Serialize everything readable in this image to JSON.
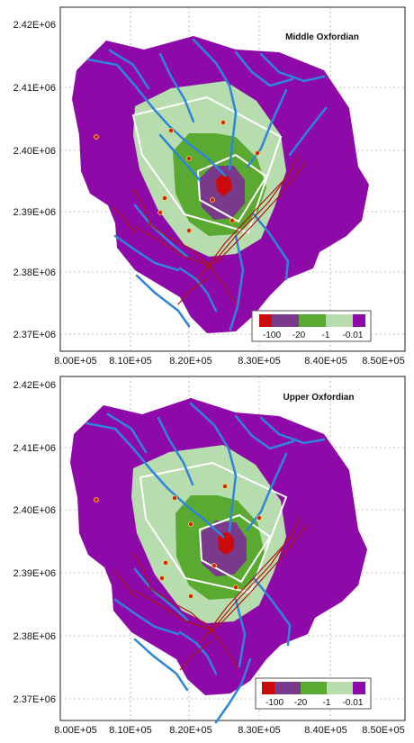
{
  "panels": [
    {
      "title": "Middle Oxfordian",
      "y_ticks": [
        "2.42E+06",
        "2.41E+06",
        "2.40E+06",
        "2.39E+06",
        "2.38E+06",
        "2.37E+06"
      ],
      "x_ticks": [
        "8.00E+05",
        "8.10E+05",
        "8.20E+05",
        "8.30E+05",
        "8.40E+05",
        "8.50E+05"
      ],
      "legend": [
        "-100",
        "-20",
        "-1",
        "-0.01"
      ]
    },
    {
      "title": "Upper Oxfordian",
      "y_ticks": [
        "2.42E+06",
        "2.41E+06",
        "2.40E+06",
        "2.39E+06",
        "2.38E+06",
        "2.37E+06"
      ],
      "x_ticks": [
        "8.00E+05",
        "8.10E+05",
        "8.20E+05",
        "8.30E+05",
        "8.40E+05",
        "8.50E+05"
      ],
      "legend": [
        "-100",
        "-20",
        "-1",
        "-0.01"
      ]
    }
  ],
  "legend_colors": [
    "#cc0a0a",
    "#7a3a8c",
    "#5aaa32",
    "#b7dcae",
    "#8e0aa8"
  ],
  "map_colors": {
    "outer": "#8e0aa8",
    "pale": "#b7dcae",
    "green": "#5aaa32",
    "purple": "#7a3a8c",
    "red": "#cc0a0a",
    "river": "#2f86d8",
    "fault": "#b01414",
    "outline": "#ffffff",
    "grid": "#888888"
  }
}
